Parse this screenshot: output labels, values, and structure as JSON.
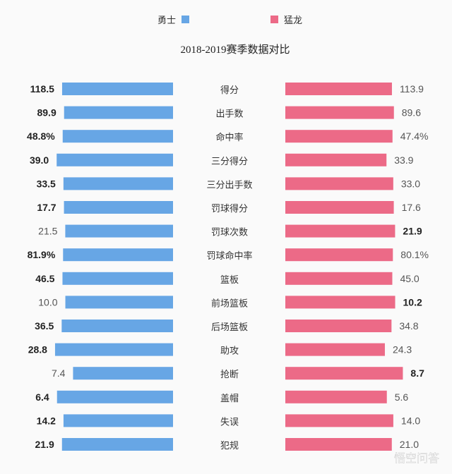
{
  "chart_data": {
    "type": "bar",
    "orientation": "horizontal-butterfly",
    "title": "2018-2019赛季数据对比",
    "legend": [
      {
        "name": "勇士",
        "color": "#67a6e5"
      },
      {
        "name": "猛龙",
        "color": "#ec6a87"
      }
    ],
    "legend_placement": "top",
    "categories": [
      "得分",
      "出手数",
      "命中率",
      "三分得分",
      "三分出手数",
      "罚球得分",
      "罚球次数",
      "罚球命中率",
      "篮板",
      "前场篮板",
      "后场篮板",
      "助攻",
      "抢断",
      "盖帽",
      "失误",
      "犯规"
    ],
    "series": [
      {
        "name": "勇士",
        "values": [
          118.5,
          89.9,
          48.8,
          39.0,
          33.5,
          17.7,
          21.5,
          81.9,
          46.5,
          10.0,
          36.5,
          28.8,
          7.4,
          6.4,
          14.2,
          21.9
        ],
        "labels": [
          "118.5",
          "89.9",
          "48.8%",
          "39.0",
          "33.5",
          "17.7",
          "21.5",
          "81.9%",
          "46.5",
          "10.0",
          "36.5",
          "28.8",
          "7.4",
          "6.4",
          "14.2",
          "21.9"
        ]
      },
      {
        "name": "猛龙",
        "values": [
          113.9,
          89.6,
          47.4,
          33.9,
          33.0,
          17.6,
          21.9,
          80.1,
          45.0,
          10.2,
          34.8,
          24.3,
          8.7,
          5.6,
          14.0,
          21.0
        ],
        "labels": [
          "113.9",
          "89.6",
          "47.4%",
          "33.9",
          "33.0",
          "17.6",
          "21.9",
          "80.1%",
          "45.0",
          "10.2",
          "34.8",
          "24.3",
          "8.7",
          "5.6",
          "14.0",
          "21.0"
        ]
      }
    ]
  },
  "watermark": "悟空问答"
}
